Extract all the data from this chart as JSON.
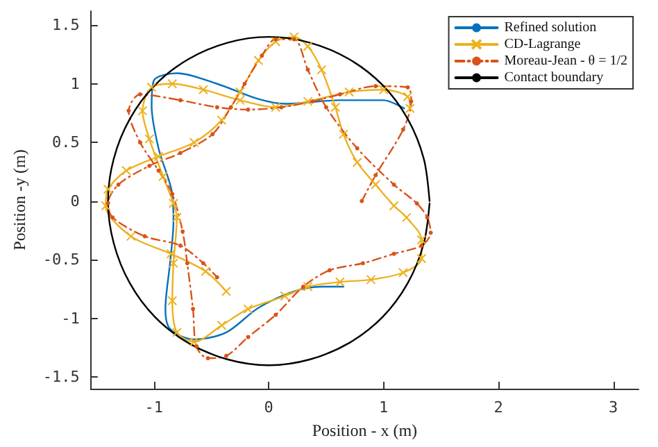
{
  "chart_data": {
    "type": "line",
    "xlabel": "Position - x (m)",
    "ylabel": "Position -y (m)",
    "xlim": [
      -1.55,
      3.22
    ],
    "ylim": [
      -1.6,
      1.62
    ],
    "xticks": [
      -1,
      0,
      1,
      2,
      3
    ],
    "yticks": [
      -1.5,
      -1,
      -0.5,
      0,
      0.5,
      1,
      1.5
    ],
    "grid": false,
    "legend": "top right",
    "series": [
      {
        "name": "Refined solution",
        "color": "#0072bd",
        "marker": "none",
        "line_style": "solid",
        "x": [
          1.18,
          1.0,
          0.62,
          0.14,
          -0.09,
          -0.45,
          -0.8,
          -1.0,
          -1.02,
          -0.96,
          -0.84,
          -0.83,
          -0.86,
          -0.9,
          -0.86,
          -0.65,
          -0.37,
          -0.09,
          0.22,
          0.46,
          0.65
        ],
        "values": [
          0.79,
          0.86,
          0.86,
          0.83,
          0.87,
          1.0,
          1.09,
          1.03,
          0.81,
          0.45,
          0.06,
          -0.18,
          -0.53,
          -0.92,
          -1.09,
          -1.18,
          -1.12,
          -0.91,
          -0.77,
          -0.73,
          -0.73
        ]
      },
      {
        "name": "CD-Lagrange",
        "color": "#edb120",
        "marker": "cross",
        "line_style": "solid",
        "x": [
          -0.37,
          -0.55,
          -0.85,
          -1.2,
          -1.42,
          -1.4,
          -1.24,
          -0.96,
          -0.65,
          -0.41,
          -0.25,
          -0.09,
          0.06,
          0.22,
          0.34,
          0.46,
          0.58,
          0.65,
          0.77,
          0.93,
          1.09,
          1.2,
          1.33,
          1.33,
          1.17,
          0.89,
          0.62,
          0.34,
          0.14,
          -0.18,
          -0.41,
          -0.65,
          -0.8,
          -0.84,
          -0.83,
          -0.8,
          -0.83,
          -0.92,
          -1.04,
          -1.1,
          -1.02,
          -0.84,
          -0.57,
          -0.25,
          0.06,
          0.34,
          0.7,
          1.0,
          1.21,
          1.23
        ],
        "values": [
          -0.77,
          -0.6,
          -0.45,
          -0.3,
          -0.04,
          0.1,
          0.26,
          0.38,
          0.5,
          0.69,
          0.93,
          1.2,
          1.36,
          1.4,
          1.32,
          1.12,
          0.8,
          0.57,
          0.33,
          0.14,
          -0.04,
          -0.14,
          -0.33,
          -0.49,
          -0.61,
          -0.67,
          -0.69,
          -0.73,
          -0.81,
          -0.92,
          -1.06,
          -1.2,
          -1.12,
          -0.85,
          -0.53,
          -0.14,
          -0.02,
          0.21,
          0.53,
          0.77,
          0.97,
          1.0,
          0.95,
          0.86,
          0.8,
          0.85,
          0.93,
          0.95,
          0.89,
          0.79
        ]
      },
      {
        "name": "Moreau-Jean - θ = 1/2",
        "color": "#d95319",
        "marker": "circle",
        "line_style": "dashdot",
        "x": [
          0.81,
          0.93,
          1.17,
          1.24,
          1.21,
          0.93,
          0.62,
          0.38,
          0.11,
          -0.18,
          -0.45,
          -0.77,
          -1.12,
          -1.22,
          -1.12,
          -0.96,
          -0.84,
          -0.75,
          -0.71,
          -0.66,
          -0.63,
          -0.53,
          -0.37,
          -0.18,
          0.06,
          0.3,
          0.53,
          0.82,
          1.09,
          1.33,
          1.41,
          1.38,
          1.29,
          1.09,
          0.77,
          0.5,
          0.34,
          0.22,
          0.06,
          -0.06,
          -0.21,
          -0.33,
          -0.49,
          -0.77,
          -1.04,
          -1.31,
          -1.4,
          -1.36,
          -1.08,
          -0.77,
          -0.57,
          -0.45
        ],
        "values": [
          0,
          0.22,
          0.61,
          0.85,
          0.97,
          0.98,
          0.91,
          0.85,
          0.8,
          0.78,
          0.8,
          0.86,
          0.91,
          0.77,
          0.5,
          0.26,
          0.06,
          -0.26,
          -0.53,
          -0.92,
          -1.24,
          -1.34,
          -1.32,
          -1.16,
          -0.97,
          -0.73,
          -0.59,
          -0.53,
          -0.45,
          -0.38,
          -0.27,
          -0.14,
          -0.02,
          0.14,
          0.45,
          0.8,
          1.12,
          1.38,
          1.38,
          1.24,
          1.0,
          0.8,
          0.57,
          0.41,
          0.3,
          0.14,
          -0.02,
          -0.14,
          -0.3,
          -0.38,
          -0.53,
          -0.65
        ]
      },
      {
        "name": "Contact boundary",
        "color": "#000000",
        "marker": "none",
        "line_style": "solid",
        "x": [
          1.4,
          1.35,
          1.21,
          0.99,
          0.7,
          0.36,
          0,
          -0.36,
          -0.7,
          -0.99,
          -1.21,
          -1.35,
          -1.4,
          -1.35,
          -1.21,
          -0.99,
          -0.7,
          -0.36,
          0,
          0.36,
          0.7,
          0.99,
          1.21,
          1.35,
          1.4
        ],
        "values": [
          0,
          0.36,
          0.7,
          0.99,
          1.21,
          1.35,
          1.4,
          1.35,
          1.21,
          0.99,
          0.7,
          0.36,
          0,
          -0.36,
          -0.7,
          -0.99,
          -1.21,
          -1.35,
          -1.4,
          -1.35,
          -1.21,
          -0.99,
          -0.7,
          -0.36,
          -0.02
        ]
      }
    ]
  }
}
